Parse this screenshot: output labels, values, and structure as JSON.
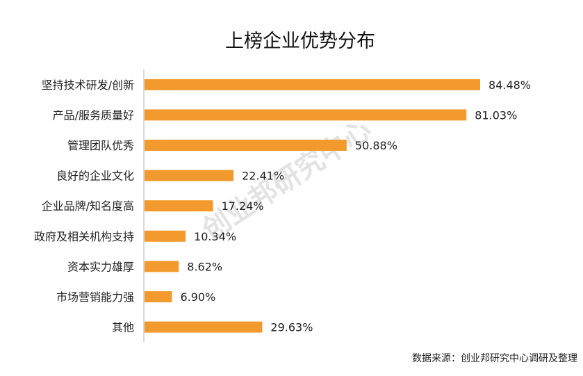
{
  "chart_data": {
    "type": "bar",
    "orientation": "horizontal",
    "title": "上榜企业优势分布",
    "categories": [
      "坚持技术研发/创新",
      "产品/服务质量好",
      "管理团队优秀",
      "良好的企业文化",
      "企业品牌/知名度高",
      "政府及相关机构支持",
      "资本实力雄厚",
      "市场营销能力强",
      "其他"
    ],
    "values": [
      84.48,
      81.03,
      50.88,
      22.41,
      17.24,
      10.34,
      8.62,
      6.9,
      29.63
    ],
    "value_labels": [
      "84.48%",
      "81.03%",
      "50.88%",
      "22.41%",
      "17.24%",
      "10.34%",
      "8.62%",
      "6.90%",
      "29.63%"
    ],
    "xlim": [
      0,
      100
    ],
    "grid": false,
    "bar_color": "#f39a2e",
    "axis_color": "#d9d9d9"
  },
  "watermark": "创业邦研究中心",
  "source": "数据来源：创业邦研究中心调研及整理"
}
